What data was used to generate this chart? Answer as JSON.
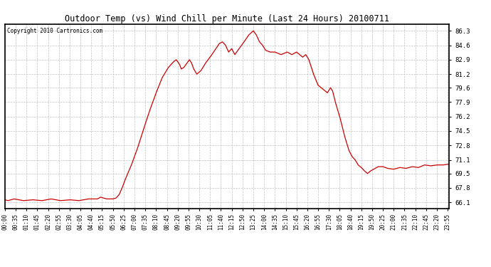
{
  "title": "Outdoor Temp (vs) Wind Chill per Minute (Last 24 Hours) 20100711",
  "copyright": "Copyright 2010 Cartronics.com",
  "line_color": "#cc0000",
  "bg_color": "#ffffff",
  "grid_color": "#bbbbbb",
  "yticks": [
    66.1,
    67.8,
    69.5,
    71.1,
    72.8,
    74.5,
    76.2,
    77.9,
    79.6,
    81.2,
    82.9,
    84.6,
    86.3
  ],
  "ylim": [
    65.4,
    87.1
  ],
  "xtick_labels": [
    "00:00",
    "00:35",
    "01:10",
    "01:45",
    "02:20",
    "02:55",
    "03:30",
    "04:05",
    "04:40",
    "05:15",
    "05:50",
    "06:25",
    "07:00",
    "07:35",
    "08:10",
    "08:45",
    "09:20",
    "09:55",
    "10:30",
    "11:05",
    "11:40",
    "12:15",
    "12:50",
    "13:25",
    "14:00",
    "14:35",
    "15:10",
    "15:45",
    "16:20",
    "16:55",
    "17:30",
    "18:05",
    "18:40",
    "19:15",
    "19:50",
    "20:25",
    "21:00",
    "21:35",
    "22:10",
    "22:45",
    "23:20",
    "23:55"
  ]
}
